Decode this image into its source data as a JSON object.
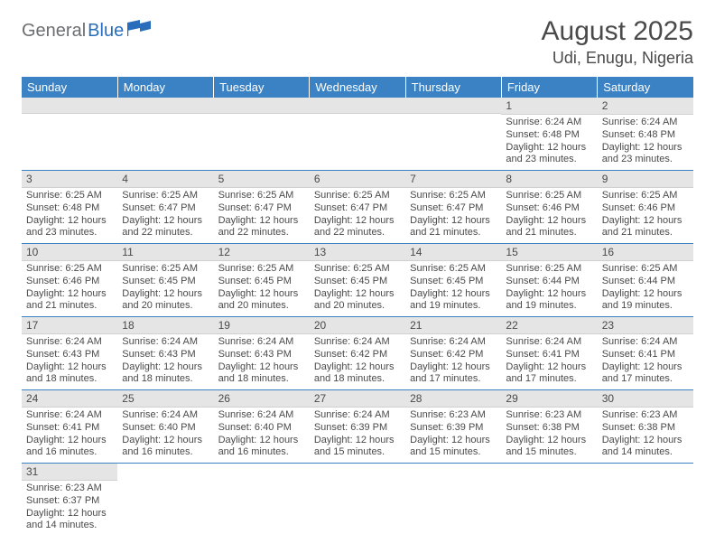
{
  "logo": {
    "gray": "General",
    "blue": "Blue"
  },
  "title": {
    "month": "August 2025",
    "location": "Udi, Enugu, Nigeria"
  },
  "colors": {
    "header_bg": "#3b82c4",
    "header_text": "#ffffff",
    "daynum_bg": "#e5e5e5",
    "row_border": "#3b82c4",
    "text": "#4a4a4a",
    "logo_gray": "#6d6e71",
    "logo_blue": "#2a6ebb"
  },
  "weekdays": [
    "Sunday",
    "Monday",
    "Tuesday",
    "Wednesday",
    "Thursday",
    "Friday",
    "Saturday"
  ],
  "weeks": [
    [
      null,
      null,
      null,
      null,
      null,
      {
        "n": "1",
        "sr": "Sunrise: 6:24 AM",
        "ss": "Sunset: 6:48 PM",
        "dl": "Daylight: 12 hours and 23 minutes."
      },
      {
        "n": "2",
        "sr": "Sunrise: 6:24 AM",
        "ss": "Sunset: 6:48 PM",
        "dl": "Daylight: 12 hours and 23 minutes."
      }
    ],
    [
      {
        "n": "3",
        "sr": "Sunrise: 6:25 AM",
        "ss": "Sunset: 6:48 PM",
        "dl": "Daylight: 12 hours and 23 minutes."
      },
      {
        "n": "4",
        "sr": "Sunrise: 6:25 AM",
        "ss": "Sunset: 6:47 PM",
        "dl": "Daylight: 12 hours and 22 minutes."
      },
      {
        "n": "5",
        "sr": "Sunrise: 6:25 AM",
        "ss": "Sunset: 6:47 PM",
        "dl": "Daylight: 12 hours and 22 minutes."
      },
      {
        "n": "6",
        "sr": "Sunrise: 6:25 AM",
        "ss": "Sunset: 6:47 PM",
        "dl": "Daylight: 12 hours and 22 minutes."
      },
      {
        "n": "7",
        "sr": "Sunrise: 6:25 AM",
        "ss": "Sunset: 6:47 PM",
        "dl": "Daylight: 12 hours and 21 minutes."
      },
      {
        "n": "8",
        "sr": "Sunrise: 6:25 AM",
        "ss": "Sunset: 6:46 PM",
        "dl": "Daylight: 12 hours and 21 minutes."
      },
      {
        "n": "9",
        "sr": "Sunrise: 6:25 AM",
        "ss": "Sunset: 6:46 PM",
        "dl": "Daylight: 12 hours and 21 minutes."
      }
    ],
    [
      {
        "n": "10",
        "sr": "Sunrise: 6:25 AM",
        "ss": "Sunset: 6:46 PM",
        "dl": "Daylight: 12 hours and 21 minutes."
      },
      {
        "n": "11",
        "sr": "Sunrise: 6:25 AM",
        "ss": "Sunset: 6:45 PM",
        "dl": "Daylight: 12 hours and 20 minutes."
      },
      {
        "n": "12",
        "sr": "Sunrise: 6:25 AM",
        "ss": "Sunset: 6:45 PM",
        "dl": "Daylight: 12 hours and 20 minutes."
      },
      {
        "n": "13",
        "sr": "Sunrise: 6:25 AM",
        "ss": "Sunset: 6:45 PM",
        "dl": "Daylight: 12 hours and 20 minutes."
      },
      {
        "n": "14",
        "sr": "Sunrise: 6:25 AM",
        "ss": "Sunset: 6:45 PM",
        "dl": "Daylight: 12 hours and 19 minutes."
      },
      {
        "n": "15",
        "sr": "Sunrise: 6:25 AM",
        "ss": "Sunset: 6:44 PM",
        "dl": "Daylight: 12 hours and 19 minutes."
      },
      {
        "n": "16",
        "sr": "Sunrise: 6:25 AM",
        "ss": "Sunset: 6:44 PM",
        "dl": "Daylight: 12 hours and 19 minutes."
      }
    ],
    [
      {
        "n": "17",
        "sr": "Sunrise: 6:24 AM",
        "ss": "Sunset: 6:43 PM",
        "dl": "Daylight: 12 hours and 18 minutes."
      },
      {
        "n": "18",
        "sr": "Sunrise: 6:24 AM",
        "ss": "Sunset: 6:43 PM",
        "dl": "Daylight: 12 hours and 18 minutes."
      },
      {
        "n": "19",
        "sr": "Sunrise: 6:24 AM",
        "ss": "Sunset: 6:43 PM",
        "dl": "Daylight: 12 hours and 18 minutes."
      },
      {
        "n": "20",
        "sr": "Sunrise: 6:24 AM",
        "ss": "Sunset: 6:42 PM",
        "dl": "Daylight: 12 hours and 18 minutes."
      },
      {
        "n": "21",
        "sr": "Sunrise: 6:24 AM",
        "ss": "Sunset: 6:42 PM",
        "dl": "Daylight: 12 hours and 17 minutes."
      },
      {
        "n": "22",
        "sr": "Sunrise: 6:24 AM",
        "ss": "Sunset: 6:41 PM",
        "dl": "Daylight: 12 hours and 17 minutes."
      },
      {
        "n": "23",
        "sr": "Sunrise: 6:24 AM",
        "ss": "Sunset: 6:41 PM",
        "dl": "Daylight: 12 hours and 17 minutes."
      }
    ],
    [
      {
        "n": "24",
        "sr": "Sunrise: 6:24 AM",
        "ss": "Sunset: 6:41 PM",
        "dl": "Daylight: 12 hours and 16 minutes."
      },
      {
        "n": "25",
        "sr": "Sunrise: 6:24 AM",
        "ss": "Sunset: 6:40 PM",
        "dl": "Daylight: 12 hours and 16 minutes."
      },
      {
        "n": "26",
        "sr": "Sunrise: 6:24 AM",
        "ss": "Sunset: 6:40 PM",
        "dl": "Daylight: 12 hours and 16 minutes."
      },
      {
        "n": "27",
        "sr": "Sunrise: 6:24 AM",
        "ss": "Sunset: 6:39 PM",
        "dl": "Daylight: 12 hours and 15 minutes."
      },
      {
        "n": "28",
        "sr": "Sunrise: 6:23 AM",
        "ss": "Sunset: 6:39 PM",
        "dl": "Daylight: 12 hours and 15 minutes."
      },
      {
        "n": "29",
        "sr": "Sunrise: 6:23 AM",
        "ss": "Sunset: 6:38 PM",
        "dl": "Daylight: 12 hours and 15 minutes."
      },
      {
        "n": "30",
        "sr": "Sunrise: 6:23 AM",
        "ss": "Sunset: 6:38 PM",
        "dl": "Daylight: 12 hours and 14 minutes."
      }
    ],
    [
      {
        "n": "31",
        "sr": "Sunrise: 6:23 AM",
        "ss": "Sunset: 6:37 PM",
        "dl": "Daylight: 12 hours and 14 minutes."
      },
      null,
      null,
      null,
      null,
      null,
      null
    ]
  ]
}
